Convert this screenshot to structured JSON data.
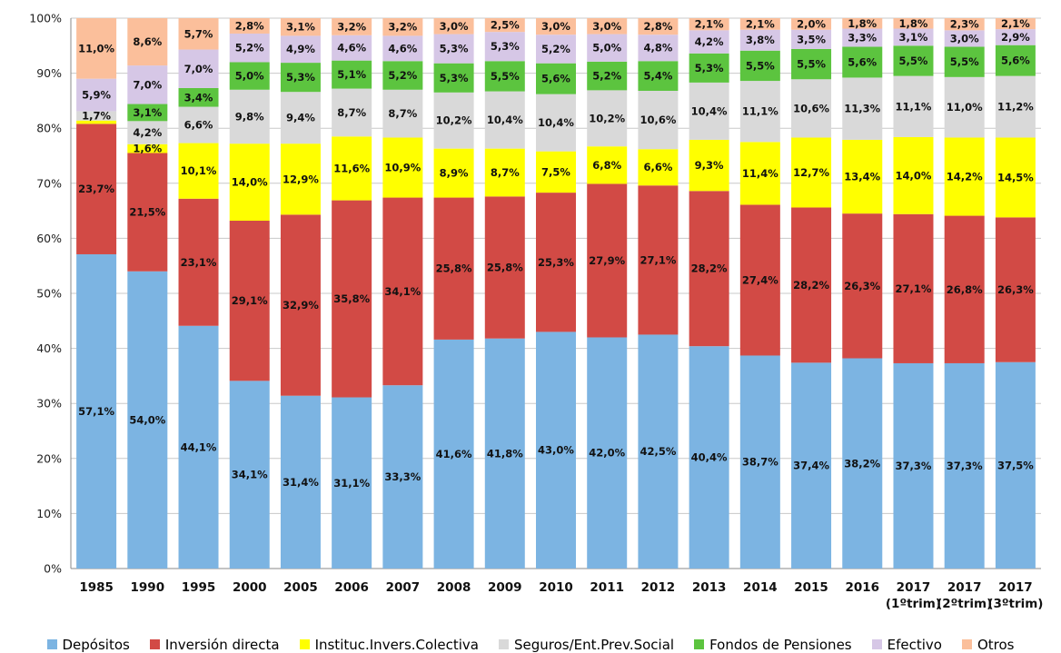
{
  "chart_data": {
    "type": "bar",
    "stacked": true,
    "percent": true,
    "categories": [
      "1985",
      "1990",
      "1995",
      "2000",
      "2005",
      "2006",
      "2007",
      "2008",
      "2009",
      "2010",
      "2011",
      "2012",
      "2013",
      "2014",
      "2015",
      "2016",
      "2017\n(1ºtrim)",
      "2017\n(2ºtrim)",
      "2017\n(3ºtrim)"
    ],
    "ylim": [
      0,
      100
    ],
    "yticks": [
      "0%",
      "10%",
      "20%",
      "30%",
      "40%",
      "50%",
      "60%",
      "70%",
      "80%",
      "90%",
      "100%"
    ],
    "grid": true,
    "legend_position": "bottom",
    "series": [
      {
        "name": "Depósitos",
        "color": "#7cb4e2",
        "values": [
          57.1,
          54.0,
          44.1,
          34.1,
          31.4,
          31.1,
          33.3,
          41.6,
          41.8,
          43.0,
          42.0,
          42.5,
          40.4,
          38.7,
          37.4,
          38.2,
          37.3,
          37.3,
          37.5
        ],
        "labels": [
          "57,1%",
          "54,0%",
          "44,1%",
          "34,1%",
          "31,4%",
          "31,1%",
          "33,3%",
          "41,6%",
          "41,8%",
          "43,0%",
          "42,0%",
          "42,5%",
          "40,4%",
          "38,7%",
          "37,4%",
          "38,2%",
          "37,3%",
          "37,3%",
          "37,5%"
        ]
      },
      {
        "name": "Inversión directa",
        "color": "#d24a45",
        "values": [
          23.7,
          21.5,
          23.1,
          29.1,
          32.9,
          35.8,
          34.1,
          25.8,
          25.8,
          25.3,
          27.9,
          27.1,
          28.2,
          27.4,
          28.2,
          26.3,
          27.1,
          26.8,
          26.3
        ],
        "labels": [
          "23,7%",
          "21,5%",
          "23,1%",
          "29,1%",
          "32,9%",
          "35,8%",
          "34,1%",
          "25,8%",
          "25,8%",
          "25,3%",
          "27,9%",
          "27,1%",
          "28,2%",
          "27,4%",
          "28,2%",
          "26,3%",
          "27,1%",
          "26,8%",
          "26,3%"
        ]
      },
      {
        "name": "Instituc.Invers.Colectiva",
        "color": "#ffff00",
        "values": [
          0.6,
          1.6,
          10.1,
          14.0,
          12.9,
          11.6,
          10.9,
          8.9,
          8.7,
          7.5,
          6.8,
          6.6,
          9.3,
          11.4,
          12.7,
          13.4,
          14.0,
          14.2,
          14.5
        ],
        "labels": [
          "",
          "1,6%",
          "10,1%",
          "14,0%",
          "12,9%",
          "11,6%",
          "10,9%",
          "8,9%",
          "8,7%",
          "7,5%",
          "6,8%",
          "6,6%",
          "9,3%",
          "11,4%",
          "12,7%",
          "13,4%",
          "14,0%",
          "14,2%",
          "14,5%"
        ]
      },
      {
        "name": "Seguros/Ent.Prev.Social",
        "color": "#d9d9d9",
        "values": [
          1.7,
          4.2,
          6.6,
          9.8,
          9.4,
          8.7,
          8.7,
          10.2,
          10.4,
          10.4,
          10.2,
          10.6,
          10.4,
          11.1,
          10.6,
          11.3,
          11.1,
          11.0,
          11.2
        ],
        "labels": [
          "1,7%",
          "4,2%",
          "6,6%",
          "9,8%",
          "9,4%",
          "8,7%",
          "8,7%",
          "10,2%",
          "10,4%",
          "10,4%",
          "10,2%",
          "10,6%",
          "10,4%",
          "11,1%",
          "10,6%",
          "11,3%",
          "11,1%",
          "11,0%",
          "11,2%"
        ]
      },
      {
        "name": "Fondos de Pensiones",
        "color": "#5cc43f",
        "values": [
          0.0,
          3.1,
          3.4,
          5.0,
          5.3,
          5.1,
          5.2,
          5.3,
          5.5,
          5.6,
          5.2,
          5.4,
          5.3,
          5.5,
          5.5,
          5.6,
          5.5,
          5.5,
          5.6
        ],
        "labels": [
          "",
          "3,1%",
          "3,4%",
          "5,0%",
          "5,3%",
          "5,1%",
          "5,2%",
          "5,3%",
          "5,5%",
          "5,6%",
          "5,2%",
          "5,4%",
          "5,3%",
          "5,5%",
          "5,5%",
          "5,6%",
          "5,5%",
          "5,5%",
          "5,6%"
        ]
      },
      {
        "name": "Efectivo",
        "color": "#d6c7e6",
        "values": [
          5.9,
          7.0,
          7.0,
          5.2,
          4.9,
          4.6,
          4.6,
          5.3,
          5.3,
          5.2,
          5.0,
          4.8,
          4.2,
          3.8,
          3.5,
          3.3,
          3.1,
          3.0,
          2.9
        ],
        "labels": [
          "5,9%",
          "7,0%",
          "7,0%",
          "5,2%",
          "4,9%",
          "4,6%",
          "4,6%",
          "5,3%",
          "5,3%",
          "5,2%",
          "5,0%",
          "4,8%",
          "4,2%",
          "3,8%",
          "3,5%",
          "3,3%",
          "3,1%",
          "3,0%",
          "2,9%"
        ]
      },
      {
        "name": "Otros",
        "color": "#fbbf9b",
        "values": [
          11.0,
          8.6,
          5.7,
          2.8,
          3.1,
          3.2,
          3.2,
          3.0,
          2.5,
          3.0,
          3.0,
          2.8,
          2.1,
          2.1,
          2.0,
          1.8,
          1.8,
          2.3,
          2.1
        ],
        "labels": [
          "11,0%",
          "8,6%",
          "5,7%",
          "2,8%",
          "3,1%",
          "3,2%",
          "3,2%",
          "3,0%",
          "2,5%",
          "3,0%",
          "3,0%",
          "2,8%",
          "2,1%",
          "2,1%",
          "2,0%",
          "1,8%",
          "1,8%",
          "2,3%",
          "2,1%"
        ]
      }
    ]
  }
}
